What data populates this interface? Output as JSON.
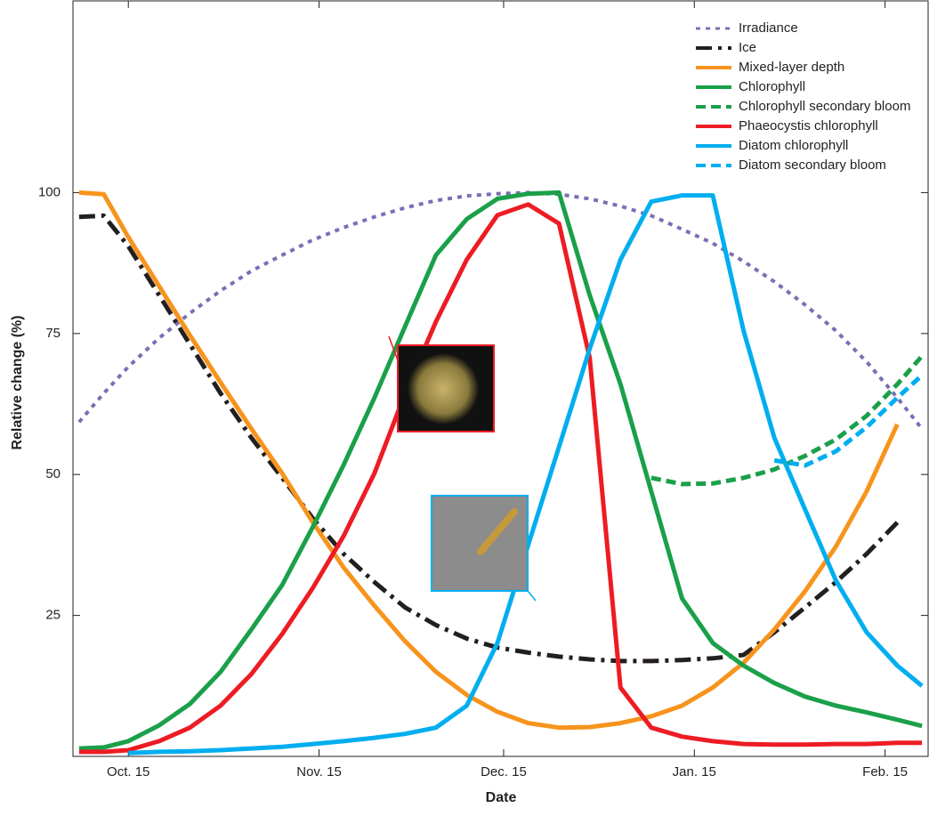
{
  "chart_data": {
    "type": "line",
    "xlabel": "Date",
    "ylabel": "Relative change (%)",
    "x": [
      -8,
      -4,
      0,
      5,
      10,
      15,
      20,
      25,
      30,
      35,
      40,
      45,
      50,
      55,
      60,
      65,
      70,
      75,
      80,
      85,
      90,
      95,
      100,
      105,
      110,
      115,
      120,
      125,
      129
    ],
    "xlim": [
      -9,
      130
    ],
    "xticks": [
      {
        "value": 0,
        "label": "Oct. 15"
      },
      {
        "value": 31,
        "label": "Nov. 15"
      },
      {
        "value": 61,
        "label": "Dec. 15"
      },
      {
        "value": 92,
        "label": "Jan. 15"
      },
      {
        "value": 123,
        "label": "Feb. 15"
      }
    ],
    "ylim": [
      0,
      134
    ],
    "yticks": [
      25,
      50,
      75,
      100
    ],
    "legend": "upper right",
    "series": [
      {
        "name": "Irradiance",
        "color": "#7b6fb5",
        "style": "dotted",
        "values": [
          59.3,
          64.4,
          69.1,
          74.2,
          78.6,
          82.6,
          86.1,
          88.9,
          91.6,
          93.8,
          95.7,
          97.3,
          98.6,
          99.4,
          99.8,
          100,
          99.7,
          98.9,
          97.6,
          95.9,
          93.5,
          91.0,
          87.8,
          84.2,
          80.1,
          75.5,
          70.0,
          63.6,
          58.1
        ]
      },
      {
        "name": "Ice",
        "color": "#231f20",
        "style": "dashdot",
        "values": [
          95.7,
          95.9,
          90.5,
          81.8,
          73.1,
          64.4,
          56.5,
          49.4,
          42.2,
          35.9,
          30.9,
          26.4,
          23.3,
          20.9,
          19.3,
          18.4,
          17.7,
          17.2,
          16.9,
          16.9,
          17.1,
          17.4,
          18.0,
          22.0,
          26.4,
          30.9,
          35.9,
          41.5,
          null
        ]
      },
      {
        "name": "Mixed-layer depth",
        "color": "#f7941d",
        "style": "solid",
        "values": [
          100,
          99.7,
          92.1,
          83.4,
          74.7,
          66.3,
          58.1,
          50.2,
          41.5,
          33.5,
          26.7,
          20.4,
          15.0,
          10.9,
          7.9,
          5.9,
          5.1,
          5.2,
          5.9,
          7.1,
          9.0,
          12.2,
          16.6,
          22.5,
          29.3,
          37.2,
          47.0,
          58.9,
          null
        ]
      },
      {
        "name": "Chlorophyll",
        "color": "#1aa049",
        "style": "solid",
        "values": [
          1.4,
          1.6,
          2.7,
          5.5,
          9.3,
          15.0,
          22.5,
          30.4,
          40.7,
          51.7,
          63.6,
          76.3,
          88.9,
          95.3,
          98.9,
          99.8,
          100,
          81.8,
          66.0,
          47.0,
          28.0,
          20.1,
          16.1,
          13.0,
          10.6,
          9.0,
          7.8,
          6.5,
          5.4
        ]
      },
      {
        "name": "Chlorophyll secondary bloom",
        "color": "#1aa049",
        "style": "dashed",
        "values": [
          null,
          null,
          null,
          null,
          null,
          null,
          null,
          null,
          null,
          null,
          null,
          null,
          null,
          null,
          null,
          null,
          null,
          null,
          null,
          49.4,
          48.3,
          48.4,
          49.4,
          50.9,
          53.3,
          56.2,
          60.4,
          66.0,
          71.0
        ]
      },
      {
        "name": "Phaeocystis chlorophyll",
        "color": "#ed1c24",
        "style": "solid",
        "values": [
          0.8,
          0.8,
          1.1,
          2.7,
          5.1,
          9.0,
          14.6,
          21.7,
          29.9,
          39.1,
          50.2,
          64.4,
          77.1,
          88.1,
          96.0,
          97.9,
          94.5,
          70.7,
          12.2,
          5.1,
          3.5,
          2.7,
          2.2,
          2.1,
          2.1,
          2.2,
          2.2,
          2.4,
          2.4
        ]
      },
      {
        "name": "Diatom chlorophyll",
        "color": "#00aeef",
        "style": "solid",
        "values": [
          null,
          null,
          0.6,
          0.8,
          0.9,
          1.1,
          1.4,
          1.7,
          2.2,
          2.7,
          3.3,
          4.0,
          5.1,
          9.0,
          20.1,
          37.5,
          54.9,
          72.3,
          88.1,
          98.4,
          99.5,
          99.5,
          75.5,
          56.5,
          43.8,
          31.2,
          22.0,
          16.1,
          12.5
        ]
      },
      {
        "name": "Diatom secondary bloom",
        "color": "#00aeef",
        "style": "dashed",
        "values": [
          null,
          null,
          null,
          null,
          null,
          null,
          null,
          null,
          null,
          null,
          null,
          null,
          null,
          null,
          null,
          null,
          null,
          null,
          null,
          null,
          null,
          null,
          null,
          52.5,
          51.6,
          54.1,
          58.4,
          63.6,
          67.6
        ]
      }
    ]
  }
}
